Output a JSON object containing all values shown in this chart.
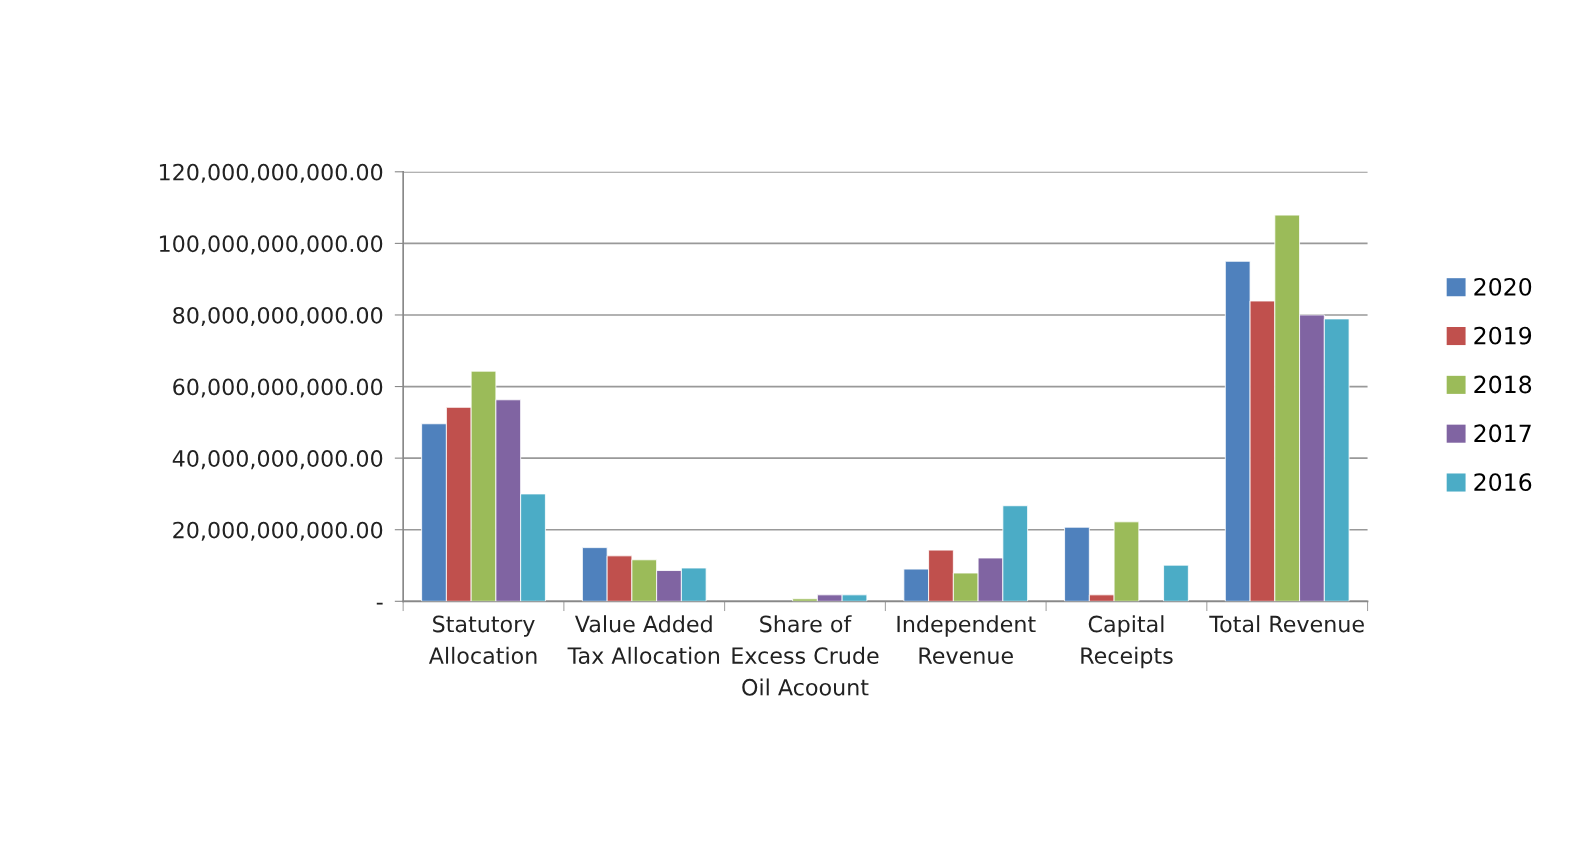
{
  "chart_data": {
    "type": "bar",
    "categories": [
      "Statutory\nAllocation",
      "Value Added\nTax Allocation",
      "Share of\nExcess Crude\nOil Acoount",
      "Independent\nRevenue",
      "Capital\nReceipts",
      "Total Revenue"
    ],
    "series": [
      {
        "name": "2020",
        "color": "#4f81bd",
        "values": [
          49600000000,
          15000000000,
          null,
          9000000000,
          20700000000,
          95000000000
        ]
      },
      {
        "name": "2019",
        "color": "#c0504d",
        "values": [
          54200000000,
          12700000000,
          null,
          14300000000,
          1800000000,
          83900000000
        ]
      },
      {
        "name": "2018",
        "color": "#9bbb59",
        "values": [
          64300000000,
          11600000000,
          700000000,
          7900000000,
          22200000000,
          107900000000
        ]
      },
      {
        "name": "2017",
        "color": "#8064a2",
        "values": [
          56300000000,
          8600000000,
          1800000000,
          12100000000,
          null,
          80000000000
        ]
      },
      {
        "name": "2016",
        "color": "#4bacc6",
        "values": [
          30000000000,
          9300000000,
          1800000000,
          26700000000,
          10100000000,
          78900000000
        ]
      }
    ],
    "ylim": [
      0,
      120000000000
    ],
    "yticks": [
      {
        "value": 0,
        "label": "-"
      },
      {
        "value": 20000000000,
        "label": "20,000,000,000.00"
      },
      {
        "value": 40000000000,
        "label": "40,000,000,000.00"
      },
      {
        "value": 60000000000,
        "label": "60,000,000,000.00"
      },
      {
        "value": 80000000000,
        "label": "80,000,000,000.00"
      },
      {
        "value": 100000000000,
        "label": "100,000,000,000.00"
      },
      {
        "value": 120000000000,
        "label": "120,000,000,000.00"
      }
    ],
    "grid": "y",
    "legend": "right"
  }
}
